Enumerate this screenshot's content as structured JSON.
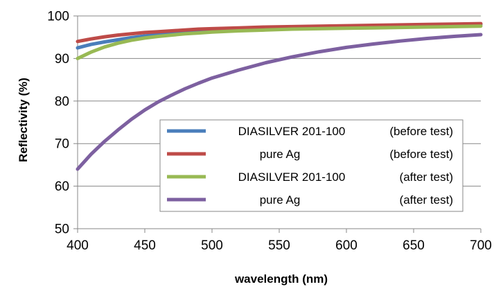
{
  "chart_data": {
    "type": "line",
    "title": "",
    "xlabel": "wavelength (nm)",
    "ylabel": "Reflectivity (%)",
    "xlim": [
      400,
      700
    ],
    "ylim": [
      50,
      100
    ],
    "xticks": [
      400,
      450,
      500,
      550,
      600,
      650,
      700
    ],
    "yticks": [
      50,
      60,
      70,
      80,
      90,
      100
    ],
    "grid": "horizontal",
    "legend_position": "bottom-right inside plot",
    "series": [
      {
        "name": "DIASILVER 201-100",
        "note": "(before test)",
        "color": "#4a7ebb",
        "x": [
          400,
          410,
          420,
          430,
          440,
          450,
          460,
          470,
          480,
          490,
          500,
          520,
          540,
          560,
          580,
          600,
          620,
          640,
          660,
          680,
          700
        ],
        "y": [
          92.5,
          93.3,
          93.9,
          94.4,
          94.9,
          95.3,
          95.6,
          95.9,
          96.2,
          96.4,
          96.6,
          96.9,
          97.1,
          97.3,
          97.5,
          97.6,
          97.7,
          97.8,
          97.9,
          98.0,
          98.0
        ]
      },
      {
        "name": "pure Ag",
        "note": "(before test)",
        "color": "#be4b48",
        "x": [
          400,
          410,
          420,
          430,
          440,
          450,
          460,
          470,
          480,
          490,
          500,
          520,
          540,
          560,
          580,
          600,
          620,
          640,
          660,
          680,
          700
        ],
        "y": [
          94.0,
          94.6,
          95.1,
          95.5,
          95.8,
          96.1,
          96.3,
          96.5,
          96.7,
          96.9,
          97.0,
          97.2,
          97.4,
          97.5,
          97.6,
          97.7,
          97.8,
          97.9,
          98.0,
          98.1,
          98.2
        ]
      },
      {
        "name": "DIASILVER 201-100",
        "note": "(after test)",
        "color": "#98b954",
        "x": [
          400,
          410,
          420,
          430,
          440,
          450,
          460,
          470,
          480,
          490,
          500,
          520,
          540,
          560,
          580,
          600,
          620,
          640,
          660,
          680,
          700
        ],
        "y": [
          90.0,
          91.5,
          92.7,
          93.6,
          94.3,
          94.8,
          95.2,
          95.5,
          95.8,
          96.0,
          96.2,
          96.5,
          96.7,
          96.9,
          97.0,
          97.1,
          97.2,
          97.3,
          97.4,
          97.5,
          97.6
        ]
      },
      {
        "name": "pure Ag",
        "note": "(after test)",
        "color": "#7d60a0",
        "x": [
          400,
          410,
          420,
          430,
          440,
          450,
          460,
          470,
          480,
          490,
          500,
          520,
          540,
          560,
          580,
          600,
          620,
          640,
          660,
          680,
          700
        ],
        "y": [
          64.0,
          67.5,
          70.5,
          73.2,
          75.7,
          77.9,
          79.8,
          81.4,
          82.9,
          84.2,
          85.4,
          87.3,
          89.0,
          90.4,
          91.6,
          92.6,
          93.4,
          94.1,
          94.7,
          95.2,
          95.6
        ]
      }
    ]
  }
}
